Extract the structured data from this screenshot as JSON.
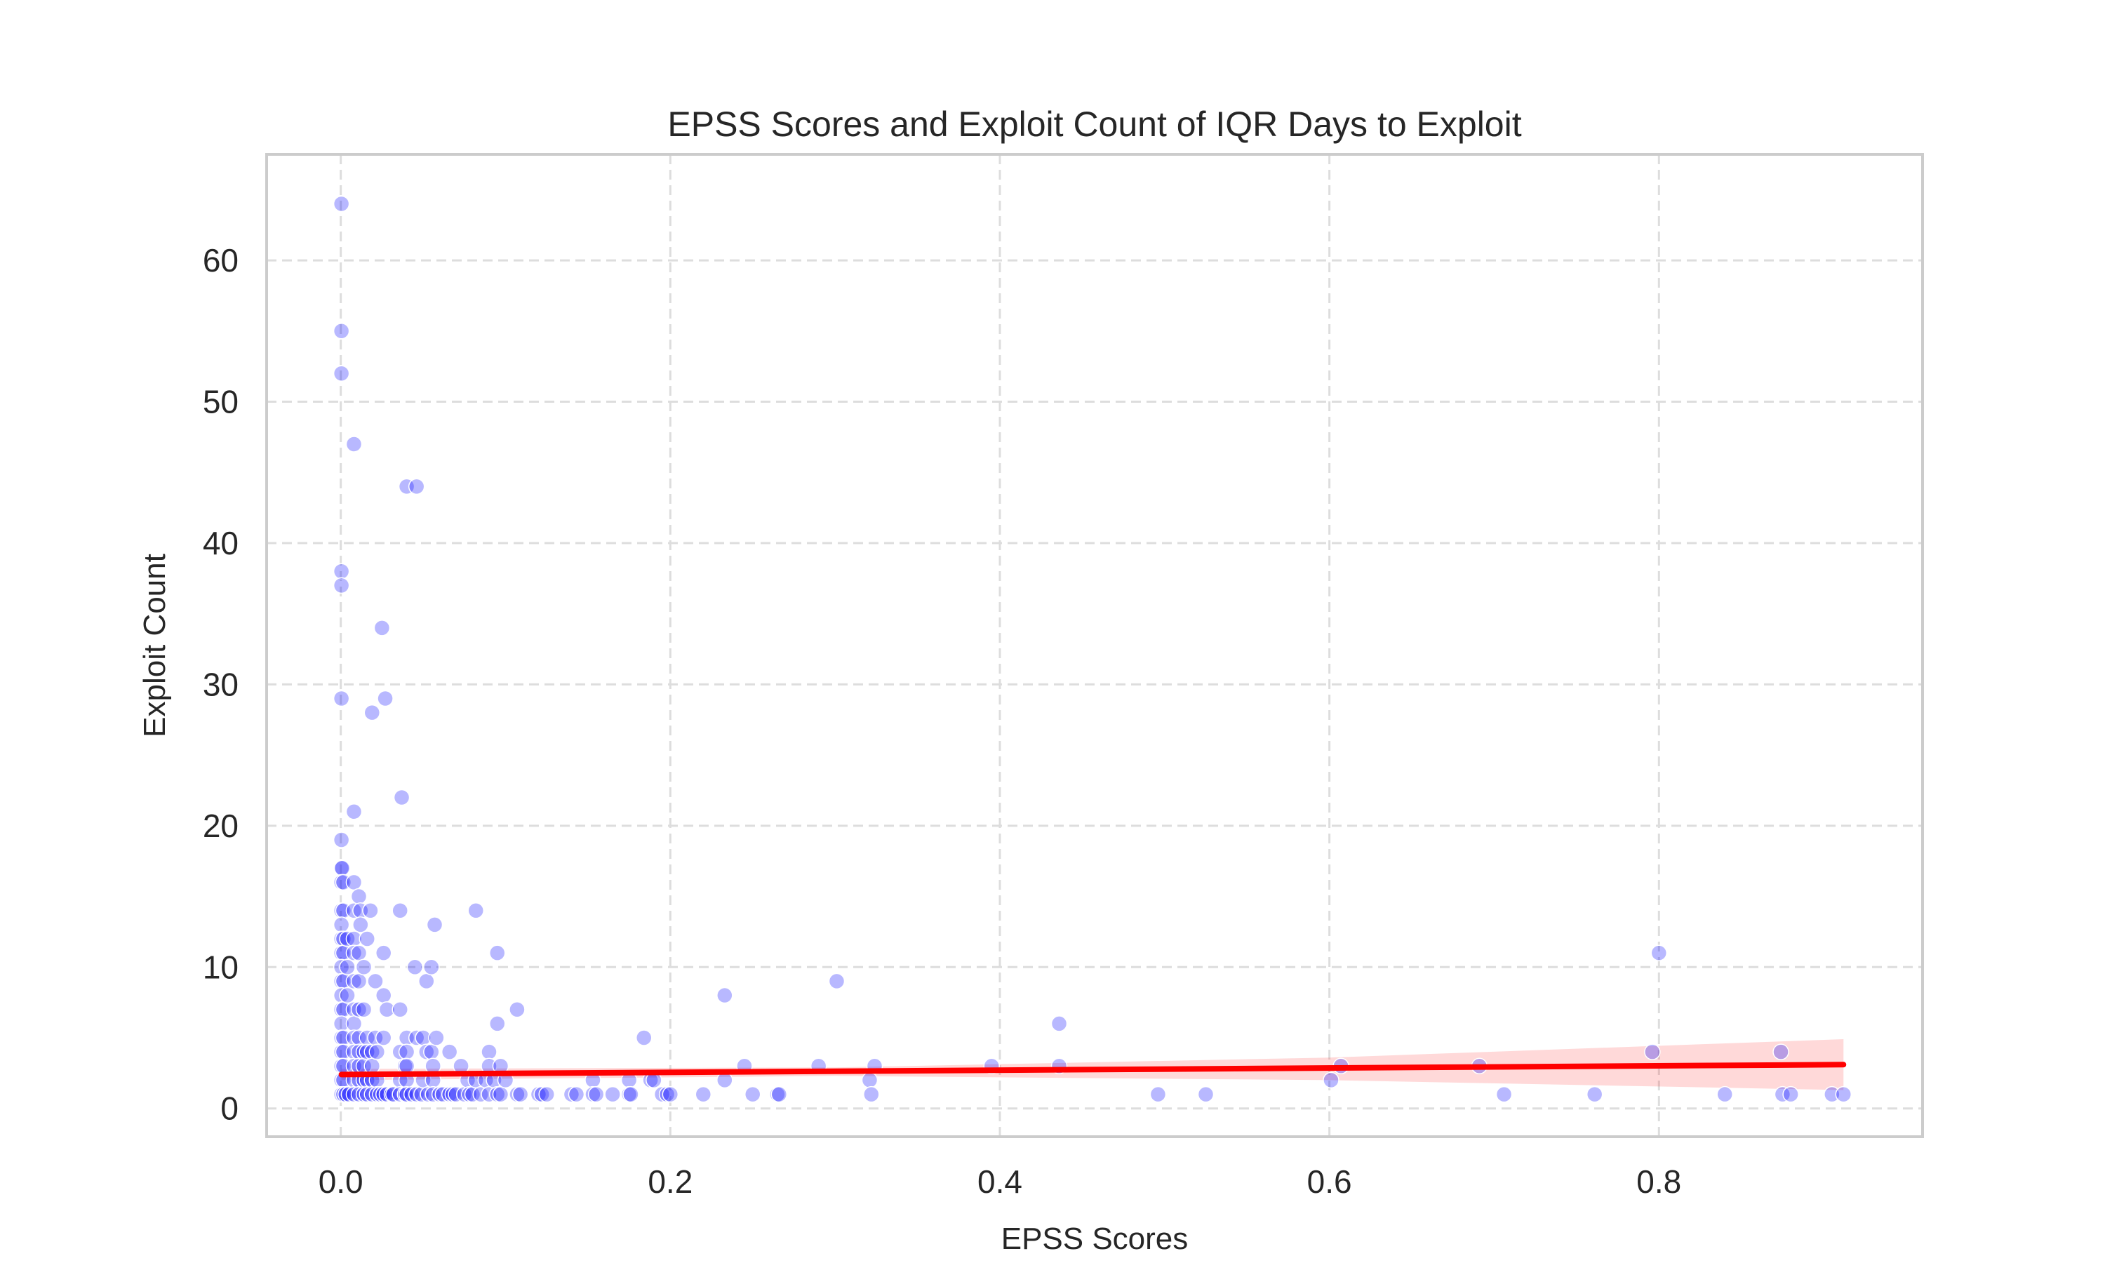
{
  "chart_data": {
    "type": "scatter",
    "title": "EPSS Scores and Exploit Count of IQR Days to Exploit",
    "xlabel": "EPSS Scores",
    "ylabel": "Exploit Count",
    "xlim": [
      -0.045,
      0.96
    ],
    "ylim": [
      -2,
      67.5
    ],
    "xticks": [
      0.0,
      0.2,
      0.4,
      0.6,
      0.8
    ],
    "xtick_labels": [
      "0.0",
      "0.2",
      "0.4",
      "0.6",
      "0.8"
    ],
    "yticks": [
      0,
      10,
      20,
      30,
      40,
      50,
      60
    ],
    "ytick_labels": [
      "0",
      "10",
      "20",
      "30",
      "40",
      "50",
      "60"
    ],
    "grid": true,
    "legend": "none",
    "colors": {
      "points": "#0000ff",
      "regression": "#ff0000",
      "confidence_band": "#ff0000",
      "grid": "#dddddd",
      "frame": "#cccccc"
    },
    "series": [
      {
        "type": "scatter",
        "points": [
          [
            0.0004,
            64
          ],
          [
            0.0004,
            55
          ],
          [
            0.0004,
            52
          ],
          [
            0.0004,
            38
          ],
          [
            0.0004,
            37
          ],
          [
            0.0004,
            29
          ],
          [
            0.0004,
            19
          ],
          [
            0.0004,
            17
          ],
          [
            0.0008,
            17
          ],
          [
            0.0004,
            16
          ],
          [
            0.0016,
            16
          ],
          [
            0.0004,
            14
          ],
          [
            0.0016,
            14
          ],
          [
            0.0004,
            13
          ],
          [
            0.0004,
            12
          ],
          [
            0.0016,
            12
          ],
          [
            0.0004,
            11
          ],
          [
            0.0016,
            11
          ],
          [
            0.0004,
            10
          ],
          [
            0.0004,
            9
          ],
          [
            0.0016,
            9
          ],
          [
            0.0004,
            8
          ],
          [
            0.0004,
            7
          ],
          [
            0.0016,
            7
          ],
          [
            0.0004,
            6
          ],
          [
            0.0004,
            5
          ],
          [
            0.0016,
            5
          ],
          [
            0.0004,
            4
          ],
          [
            0.0016,
            4
          ],
          [
            0.0004,
            3
          ],
          [
            0.0016,
            3
          ],
          [
            0.0004,
            2
          ],
          [
            0.0016,
            2
          ],
          [
            0.0004,
            1
          ],
          [
            0.0016,
            1
          ],
          [
            0.003,
            1
          ],
          [
            0.005,
            1
          ],
          [
            0.004,
            8
          ],
          [
            0.004,
            10
          ],
          [
            0.004,
            12
          ],
          [
            0.008,
            47
          ],
          [
            0.008,
            21
          ],
          [
            0.008,
            16
          ],
          [
            0.008,
            14
          ],
          [
            0.008,
            12
          ],
          [
            0.008,
            11
          ],
          [
            0.008,
            9
          ],
          [
            0.008,
            7
          ],
          [
            0.008,
            6
          ],
          [
            0.008,
            5
          ],
          [
            0.008,
            4
          ],
          [
            0.008,
            3
          ],
          [
            0.008,
            2
          ],
          [
            0.008,
            1
          ],
          [
            0.011,
            15
          ],
          [
            0.011,
            11
          ],
          [
            0.011,
            9
          ],
          [
            0.011,
            7
          ],
          [
            0.011,
            5
          ],
          [
            0.011,
            4
          ],
          [
            0.011,
            3
          ],
          [
            0.011,
            2
          ],
          [
            0.011,
            1
          ],
          [
            0.012,
            14
          ],
          [
            0.012,
            13
          ],
          [
            0.014,
            10
          ],
          [
            0.014,
            7
          ],
          [
            0.014,
            4
          ],
          [
            0.014,
            3
          ],
          [
            0.014,
            2
          ],
          [
            0.014,
            1
          ],
          [
            0.016,
            12
          ],
          [
            0.016,
            5
          ],
          [
            0.016,
            4
          ],
          [
            0.016,
            2
          ],
          [
            0.016,
            1
          ],
          [
            0.018,
            14
          ],
          [
            0.019,
            28
          ],
          [
            0.019,
            4
          ],
          [
            0.019,
            3
          ],
          [
            0.019,
            2
          ],
          [
            0.019,
            1
          ],
          [
            0.021,
            9
          ],
          [
            0.021,
            5
          ],
          [
            0.022,
            4
          ],
          [
            0.022,
            2
          ],
          [
            0.022,
            1
          ],
          [
            0.024,
            1
          ],
          [
            0.025,
            34
          ],
          [
            0.026,
            11
          ],
          [
            0.026,
            8
          ],
          [
            0.026,
            5
          ],
          [
            0.026,
            1
          ],
          [
            0.027,
            29
          ],
          [
            0.028,
            7
          ],
          [
            0.028,
            1
          ],
          [
            0.031,
            1
          ],
          [
            0.032,
            1
          ],
          [
            0.036,
            14
          ],
          [
            0.036,
            7
          ],
          [
            0.036,
            4
          ],
          [
            0.036,
            2
          ],
          [
            0.036,
            1
          ],
          [
            0.037,
            22
          ],
          [
            0.039,
            3
          ],
          [
            0.039,
            1
          ],
          [
            0.04,
            44
          ],
          [
            0.04,
            5
          ],
          [
            0.04,
            4
          ],
          [
            0.04,
            3
          ],
          [
            0.04,
            2
          ],
          [
            0.04,
            1
          ],
          [
            0.043,
            1
          ],
          [
            0.045,
            10
          ],
          [
            0.046,
            44
          ],
          [
            0.046,
            5
          ],
          [
            0.046,
            1
          ],
          [
            0.049,
            1
          ],
          [
            0.05,
            5
          ],
          [
            0.05,
            2
          ],
          [
            0.052,
            9
          ],
          [
            0.052,
            4
          ],
          [
            0.053,
            1
          ],
          [
            0.055,
            10
          ],
          [
            0.055,
            4
          ],
          [
            0.056,
            3
          ],
          [
            0.056,
            2
          ],
          [
            0.056,
            1
          ],
          [
            0.057,
            13
          ],
          [
            0.058,
            5
          ],
          [
            0.06,
            1
          ],
          [
            0.062,
            1
          ],
          [
            0.066,
            4
          ],
          [
            0.066,
            1
          ],
          [
            0.068,
            1
          ],
          [
            0.07,
            1
          ],
          [
            0.073,
            3
          ],
          [
            0.075,
            1
          ],
          [
            0.077,
            2
          ],
          [
            0.078,
            1
          ],
          [
            0.08,
            1
          ],
          [
            0.082,
            14
          ],
          [
            0.082,
            2
          ],
          [
            0.085,
            1
          ],
          [
            0.088,
            2
          ],
          [
            0.09,
            4
          ],
          [
            0.09,
            3
          ],
          [
            0.09,
            1
          ],
          [
            0.093,
            2
          ],
          [
            0.095,
            6
          ],
          [
            0.095,
            11
          ],
          [
            0.095,
            1
          ],
          [
            0.097,
            3
          ],
          [
            0.097,
            1
          ],
          [
            0.1,
            2
          ],
          [
            0.107,
            7
          ],
          [
            0.107,
            1
          ],
          [
            0.109,
            1
          ],
          [
            0.12,
            1
          ],
          [
            0.122,
            1
          ],
          [
            0.125,
            1
          ],
          [
            0.14,
            1
          ],
          [
            0.143,
            1
          ],
          [
            0.153,
            2
          ],
          [
            0.153,
            1
          ],
          [
            0.155,
            1
          ],
          [
            0.165,
            1
          ],
          [
            0.175,
            2
          ],
          [
            0.175,
            1
          ],
          [
            0.176,
            1
          ],
          [
            0.184,
            5
          ],
          [
            0.188,
            2
          ],
          [
            0.19,
            2
          ],
          [
            0.195,
            1
          ],
          [
            0.198,
            1
          ],
          [
            0.2,
            1
          ],
          [
            0.22,
            1
          ],
          [
            0.233,
            8
          ],
          [
            0.233,
            2
          ],
          [
            0.245,
            3
          ],
          [
            0.25,
            1
          ],
          [
            0.265,
            1
          ],
          [
            0.266,
            1
          ],
          [
            0.29,
            3
          ],
          [
            0.301,
            9
          ],
          [
            0.321,
            2
          ],
          [
            0.322,
            1
          ],
          [
            0.324,
            3
          ],
          [
            0.395,
            3
          ],
          [
            0.436,
            6
          ],
          [
            0.436,
            3
          ],
          [
            0.496,
            1
          ],
          [
            0.525,
            1
          ],
          [
            0.601,
            2
          ],
          [
            0.607,
            3
          ],
          [
            0.691,
            3
          ],
          [
            0.706,
            1
          ],
          [
            0.761,
            1
          ],
          [
            0.796,
            4
          ],
          [
            0.8,
            11
          ],
          [
            0.84,
            1
          ],
          [
            0.874,
            4
          ],
          [
            0.875,
            1
          ],
          [
            0.88,
            1
          ],
          [
            0.905,
            1
          ],
          [
            0.912,
            1
          ]
        ]
      },
      {
        "type": "regression-line",
        "points": [
          [
            0.0004,
            2.4
          ],
          [
            0.912,
            3.1
          ]
        ],
        "band_lower": [
          [
            0.0004,
            2.0
          ],
          [
            0.3,
            2.3
          ],
          [
            0.6,
            2.0
          ],
          [
            0.912,
            1.3
          ]
        ],
        "band_upper": [
          [
            0.0004,
            2.8
          ],
          [
            0.3,
            2.9
          ],
          [
            0.6,
            3.6
          ],
          [
            0.912,
            4.9
          ]
        ]
      }
    ]
  }
}
